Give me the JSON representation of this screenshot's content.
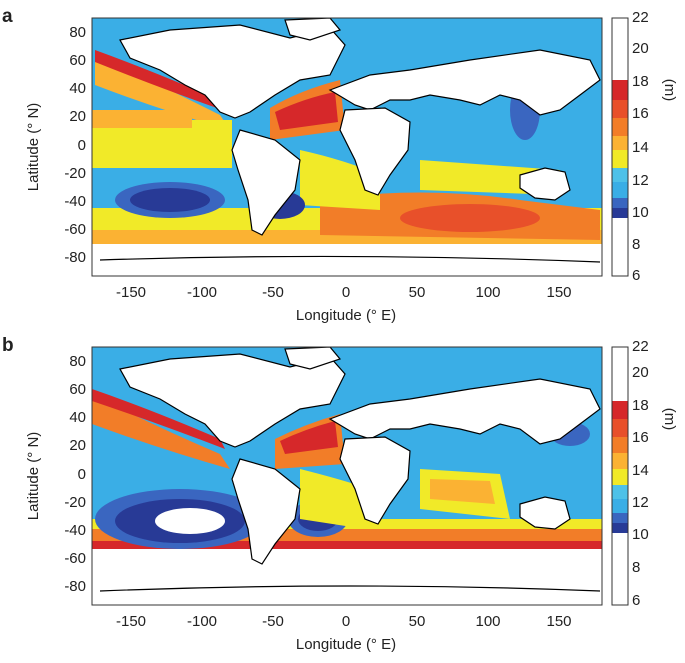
{
  "colors": {
    "c6": "#ffffff",
    "c8": "#ffffff",
    "c10": "#283a96",
    "c11": "#3a66c0",
    "c12": "#3aaee6",
    "c13": "#4ec1e8",
    "c14": "#f1ea28",
    "c15": "#fbb233",
    "c16": "#f27d28",
    "c17": "#e8502a",
    "c18": "#d6282a",
    "land": "#ffffff",
    "coast": "#000000"
  },
  "map": {
    "xlabel": "Longitude (° E)",
    "ylabel": "Latitude (° N)",
    "xticks": [
      "-150",
      "-100",
      "-50",
      "0",
      "50",
      "100",
      "150"
    ],
    "yticks": [
      "80",
      "60",
      "40",
      "20",
      "0",
      "-20",
      "-40",
      "-60",
      "-80"
    ],
    "xlim": [
      -180,
      180
    ],
    "ylim": [
      -90,
      90
    ]
  },
  "colorbar": {
    "unit": "(m)",
    "ticks": [
      "22",
      "20",
      "18",
      "16",
      "14",
      "12",
      "10",
      "8",
      "6"
    ],
    "levels": [
      {
        "from": 18,
        "to": 22,
        "color": "#ffffff"
      },
      {
        "from": 17,
        "to": 18,
        "color": "#d6282a"
      },
      {
        "from": 16,
        "to": 17,
        "color": "#e8502a"
      },
      {
        "from": 15,
        "to": 16,
        "color": "#f27d28"
      },
      {
        "from": 14,
        "to": 15,
        "color": "#fbb233"
      },
      {
        "from": 13,
        "to": 14,
        "color": "#f1ea28"
      },
      {
        "from": 12,
        "to": 13,
        "color": "#4ec1e8"
      },
      {
        "from": 11,
        "to": 12,
        "color": "#3aaee6"
      },
      {
        "from": 10.5,
        "to": 11,
        "color": "#3a66c0"
      },
      {
        "from": 10,
        "to": 10.5,
        "color": "#283a96"
      },
      {
        "from": 6,
        "to": 10,
        "color": "#ffffff"
      }
    ]
  },
  "panels": [
    {
      "letter": "a"
    },
    {
      "letter": "b"
    }
  ]
}
